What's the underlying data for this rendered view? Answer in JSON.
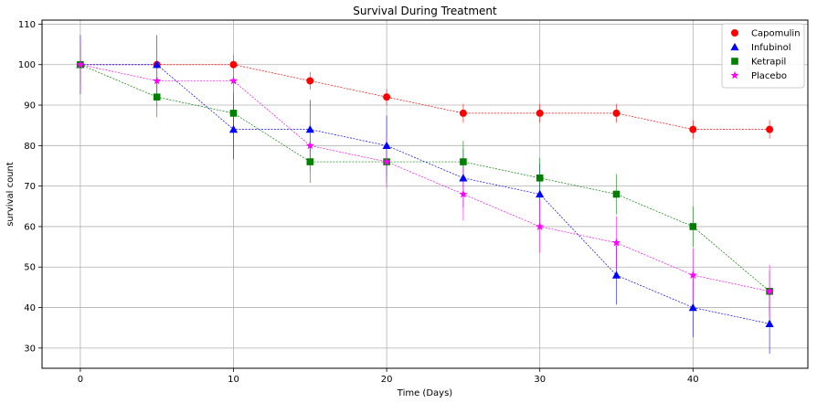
{
  "chart_data": {
    "type": "line",
    "title": "Survival During Treatment",
    "xlabel": "Time (Days)",
    "ylabel": "survival count",
    "xlim": [
      -2.5,
      47.5
    ],
    "ylim": [
      25,
      111
    ],
    "xticks": [
      0,
      10,
      20,
      30,
      40
    ],
    "yticks": [
      30,
      40,
      50,
      60,
      70,
      80,
      90,
      100,
      110
    ],
    "grid": true,
    "legend_position": "top-right",
    "x": [
      0,
      5,
      10,
      15,
      20,
      25,
      30,
      35,
      40,
      45
    ],
    "series": [
      {
        "name": "Capomulin",
        "color": "#ff0000",
        "marker": "circle",
        "values": [
          100,
          100,
          100,
          96,
          92,
          88,
          88,
          88,
          84,
          84
        ],
        "error": [
          0,
          0,
          0,
          2.2,
          2.0,
          2.3,
          2.3,
          2.3,
          2.3,
          2.3
        ]
      },
      {
        "name": "Infubinol",
        "color": "#0000ff",
        "marker": "triangle",
        "values": [
          100,
          100,
          84,
          84,
          80,
          72,
          68,
          48,
          40,
          36
        ],
        "error": [
          7.3,
          7.3,
          7.4,
          7.3,
          7.4,
          7.3,
          7.4,
          7.3,
          7.3,
          7.4
        ]
      },
      {
        "name": "Ketrapil",
        "color": "#008000",
        "marker": "square",
        "values": [
          100,
          92,
          88,
          76,
          76,
          76,
          72,
          68,
          60,
          44
        ],
        "error": [
          5.0,
          5.0,
          5.0,
          5.2,
          5.2,
          5.2,
          5.0,
          5.0,
          5.0,
          5.0
        ]
      },
      {
        "name": "Placebo",
        "color": "#ff00ff",
        "marker": "star",
        "values": [
          100,
          96,
          96,
          80,
          76,
          68,
          60,
          56,
          48,
          44
        ],
        "error": [
          6.5,
          6.5,
          6.5,
          6.5,
          6.5,
          6.5,
          6.5,
          6.5,
          6.5,
          6.5
        ]
      }
    ]
  }
}
